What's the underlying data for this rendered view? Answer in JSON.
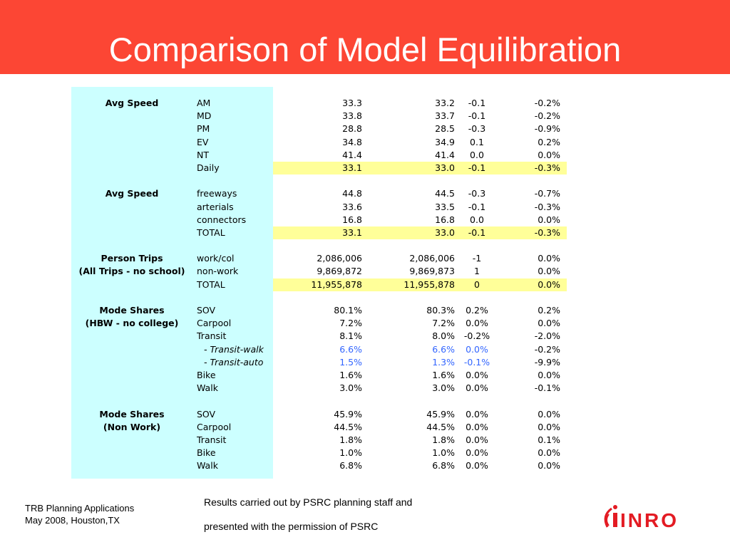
{
  "title": "Comparison of Model Equilibration",
  "colors": {
    "banner": "#fc4634",
    "label_column": "#ccffff",
    "highlight": "#ffff99",
    "blue_text": "#3366ff",
    "logo_red": "#e31b23"
  },
  "rows": [
    {
      "group": "Avg Speed",
      "label": "AM",
      "v1": "33.3",
      "v2": "33.2",
      "v3": "-0.1",
      "v4": "-0.2%"
    },
    {
      "group": "",
      "label": "MD",
      "v1": "33.8",
      "v2": "33.7",
      "v3": "-0.1",
      "v4": "-0.2%"
    },
    {
      "group": "",
      "label": "PM",
      "v1": "28.8",
      "v2": "28.5",
      "v3": "-0.3",
      "v4": "-0.9%"
    },
    {
      "group": "",
      "label": "EV",
      "v1": "34.8",
      "v2": "34.9",
      "v3": "0.1",
      "v4": "0.2%"
    },
    {
      "group": "",
      "label": "NT",
      "v1": "41.4",
      "v2": "41.4",
      "v3": "0.0",
      "v4": "0.0%"
    },
    {
      "group": "",
      "label": "Daily",
      "v1": "33.1",
      "v2": "33.0",
      "v3": "-0.1",
      "v4": "-0.3%",
      "highlight": true
    },
    {
      "blank": true
    },
    {
      "group": "Avg Speed",
      "label": "freeways",
      "v1": "44.8",
      "v2": "44.5",
      "v3": "-0.3",
      "v4": "-0.7%"
    },
    {
      "group": "",
      "label": "arterials",
      "v1": "33.6",
      "v2": "33.5",
      "v3": "-0.1",
      "v4": "-0.3%"
    },
    {
      "group": "",
      "label": "connectors",
      "v1": "16.8",
      "v2": "16.8",
      "v3": "0.0",
      "v4": "0.0%"
    },
    {
      "group": "",
      "label": "TOTAL",
      "v1": "33.1",
      "v2": "33.0",
      "v3": "-0.1",
      "v4": "-0.3%",
      "highlight": true
    },
    {
      "blank": true
    },
    {
      "group": "Person Trips",
      "label": "work/col",
      "v1": "2,086,006",
      "v2": "2,086,006",
      "v3": "-1",
      "v4": "0.0%"
    },
    {
      "group": "(All Trips - no school)",
      "label": "non-work",
      "v1": "9,869,872",
      "v2": "9,869,873",
      "v3": "1",
      "v4": "0.0%"
    },
    {
      "group": "",
      "label": "TOTAL",
      "v1": "11,955,878",
      "v2": "11,955,878",
      "v3": "0",
      "v4": "0.0%",
      "highlight": true
    },
    {
      "blank": true
    },
    {
      "group": "Mode Shares",
      "label": "SOV",
      "v1": "80.1%",
      "v2": "80.3%",
      "v3": "0.2%",
      "v4": "0.2%"
    },
    {
      "group": "(HBW - no college)",
      "label": "Carpool",
      "v1": "7.2%",
      "v2": "7.2%",
      "v3": "0.0%",
      "v4": "0.0%"
    },
    {
      "group": "",
      "label": "Transit",
      "v1": "8.1%",
      "v2": "8.0%",
      "v3": "-0.2%",
      "v4": "-2.0%"
    },
    {
      "group": "",
      "label": "- Transit-walk",
      "v1": "6.6%",
      "v2": "6.6%",
      "v3": "0.0%",
      "v4": "-0.2%",
      "sub": true
    },
    {
      "group": "",
      "label": "- Transit-auto",
      "v1": "1.5%",
      "v2": "1.3%",
      "v3": "-0.1%",
      "v4": "-9.9%",
      "sub": true
    },
    {
      "group": "",
      "label": "Bike",
      "v1": "1.6%",
      "v2": "1.6%",
      "v3": "0.0%",
      "v4": "0.0%"
    },
    {
      "group": "",
      "label": "Walk",
      "v1": "3.0%",
      "v2": "3.0%",
      "v3": "0.0%",
      "v4": "-0.1%"
    },
    {
      "blank": true
    },
    {
      "group": "Mode Shares",
      "label": "SOV",
      "v1": "45.9%",
      "v2": "45.9%",
      "v3": "0.0%",
      "v4": "0.0%"
    },
    {
      "group": "(Non Work)",
      "label": "Carpool",
      "v1": "44.5%",
      "v2": "44.5%",
      "v3": "0.0%",
      "v4": "0.0%"
    },
    {
      "group": "",
      "label": "Transit",
      "v1": "1.8%",
      "v2": "1.8%",
      "v3": "0.0%",
      "v4": "0.1%"
    },
    {
      "group": "",
      "label": "Bike",
      "v1": "1.0%",
      "v2": "1.0%",
      "v3": "0.0%",
      "v4": "0.0%"
    },
    {
      "group": "",
      "label": "Walk",
      "v1": "6.8%",
      "v2": "6.8%",
      "v3": "0.0%",
      "v4": "0.0%"
    }
  ],
  "footer": {
    "left_line1": "TRB Planning Applications",
    "left_line2": "May 2008, Houston,TX",
    "center_line1": "Results carried out by PSRC planning staff and",
    "center_line2": "presented with the permission of PSRC"
  },
  "logo": {
    "text": "INRO",
    "icon": "inro-logo-icon"
  }
}
